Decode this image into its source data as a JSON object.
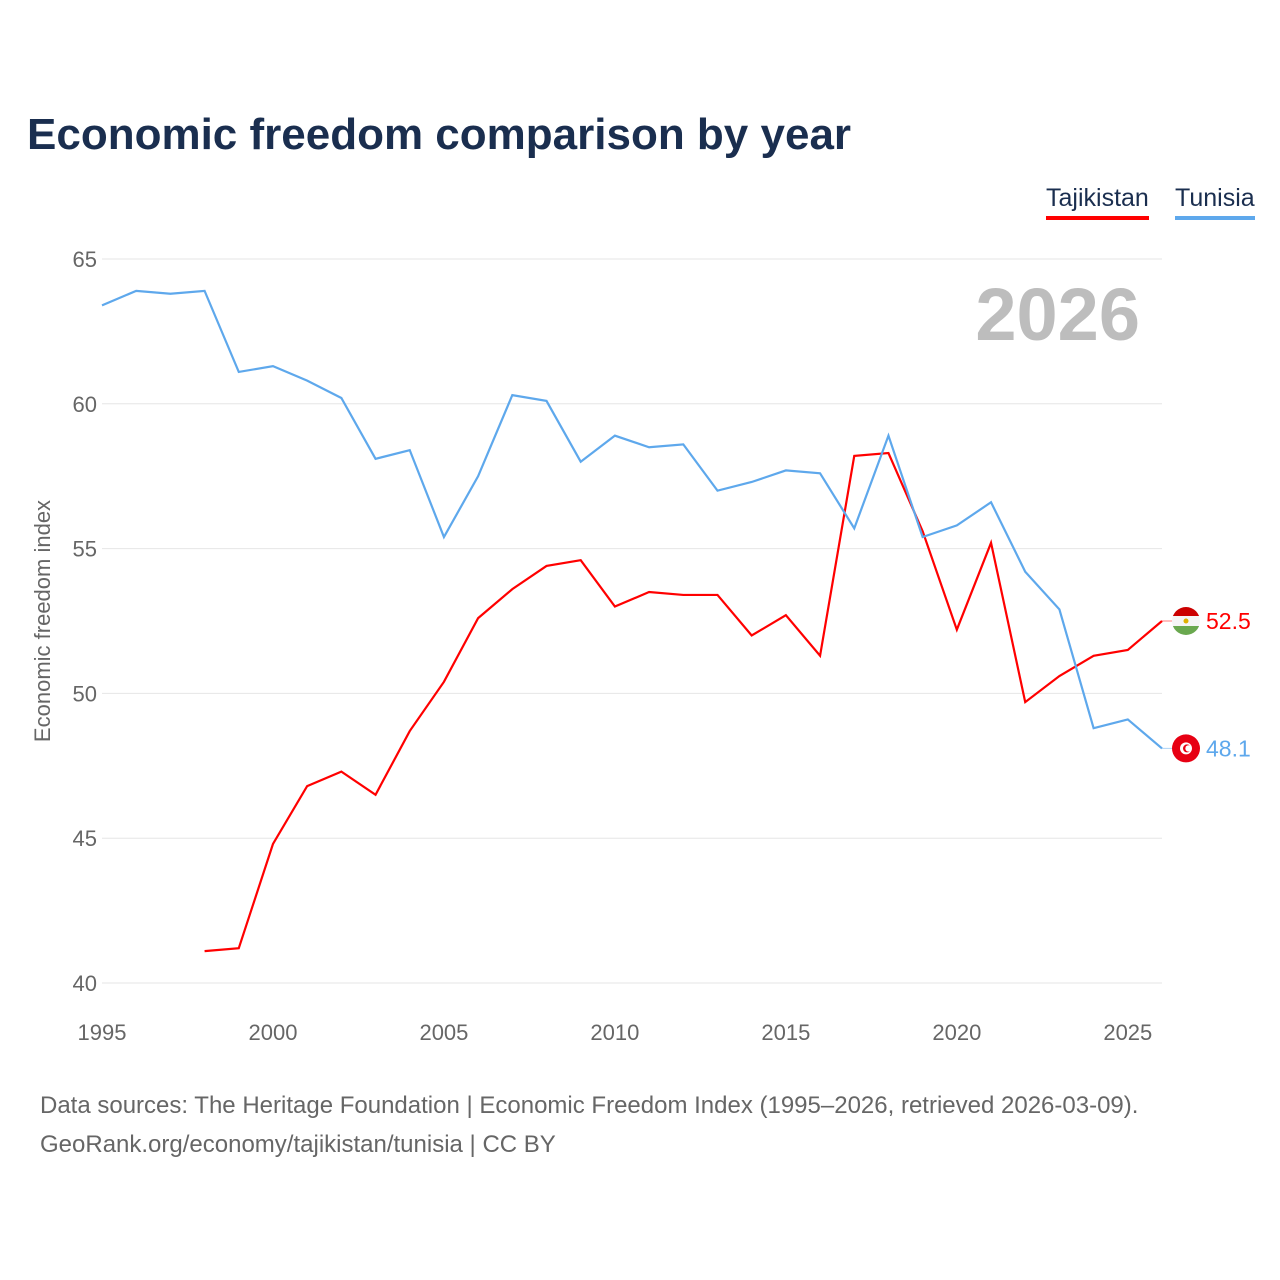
{
  "chart_data": {
    "type": "line",
    "title": "Economic freedom comparison by year",
    "xlabel": "",
    "ylabel": "Economic freedom index",
    "xlim": [
      1995,
      2026
    ],
    "ylim": [
      40,
      65
    ],
    "yticks": [
      40,
      45,
      50,
      55,
      60,
      65
    ],
    "xticks": [
      1995,
      2000,
      2005,
      2010,
      2015,
      2020,
      2025
    ],
    "grid": true,
    "legend_position": "top-right",
    "year_label": "2026",
    "series": [
      {
        "name": "Tajikistan",
        "color": "#ff0000",
        "end_label": "52.5",
        "x": [
          1998,
          1999,
          2000,
          2001,
          2002,
          2003,
          2004,
          2005,
          2006,
          2007,
          2008,
          2009,
          2010,
          2011,
          2012,
          2013,
          2014,
          2015,
          2016,
          2017,
          2018,
          2019,
          2020,
          2021,
          2022,
          2023,
          2024,
          2025,
          2026
        ],
        "values": [
          41.1,
          41.2,
          44.8,
          46.8,
          47.3,
          46.5,
          48.7,
          50.4,
          52.6,
          53.6,
          54.4,
          54.6,
          53.0,
          53.5,
          53.4,
          53.4,
          52.0,
          52.7,
          51.3,
          58.2,
          58.3,
          55.6,
          52.2,
          55.2,
          49.7,
          50.6,
          51.3,
          51.5,
          52.5
        ]
      },
      {
        "name": "Tunisia",
        "color": "#5ea8ec",
        "end_label": "48.1",
        "x": [
          1995,
          1996,
          1997,
          1998,
          1999,
          2000,
          2001,
          2002,
          2003,
          2004,
          2005,
          2006,
          2007,
          2008,
          2009,
          2010,
          2011,
          2012,
          2013,
          2014,
          2015,
          2016,
          2017,
          2018,
          2019,
          2020,
          2021,
          2022,
          2023,
          2024,
          2025,
          2026
        ],
        "values": [
          63.4,
          63.9,
          63.8,
          63.9,
          61.1,
          61.3,
          60.8,
          60.2,
          58.1,
          58.4,
          55.4,
          57.5,
          60.3,
          60.1,
          58.0,
          58.9,
          58.5,
          58.6,
          57.0,
          57.3,
          57.7,
          57.6,
          55.7,
          58.9,
          55.4,
          55.8,
          56.6,
          54.2,
          52.9,
          48.8,
          49.1,
          48.1
        ]
      }
    ]
  },
  "source": {
    "line1": "Data sources: The Heritage Foundation | Economic Freedom Index (1995–2026, retrieved 2026-03-09).",
    "line2": "GeoRank.org/economy/tajikistan/tunisia | CC BY"
  }
}
